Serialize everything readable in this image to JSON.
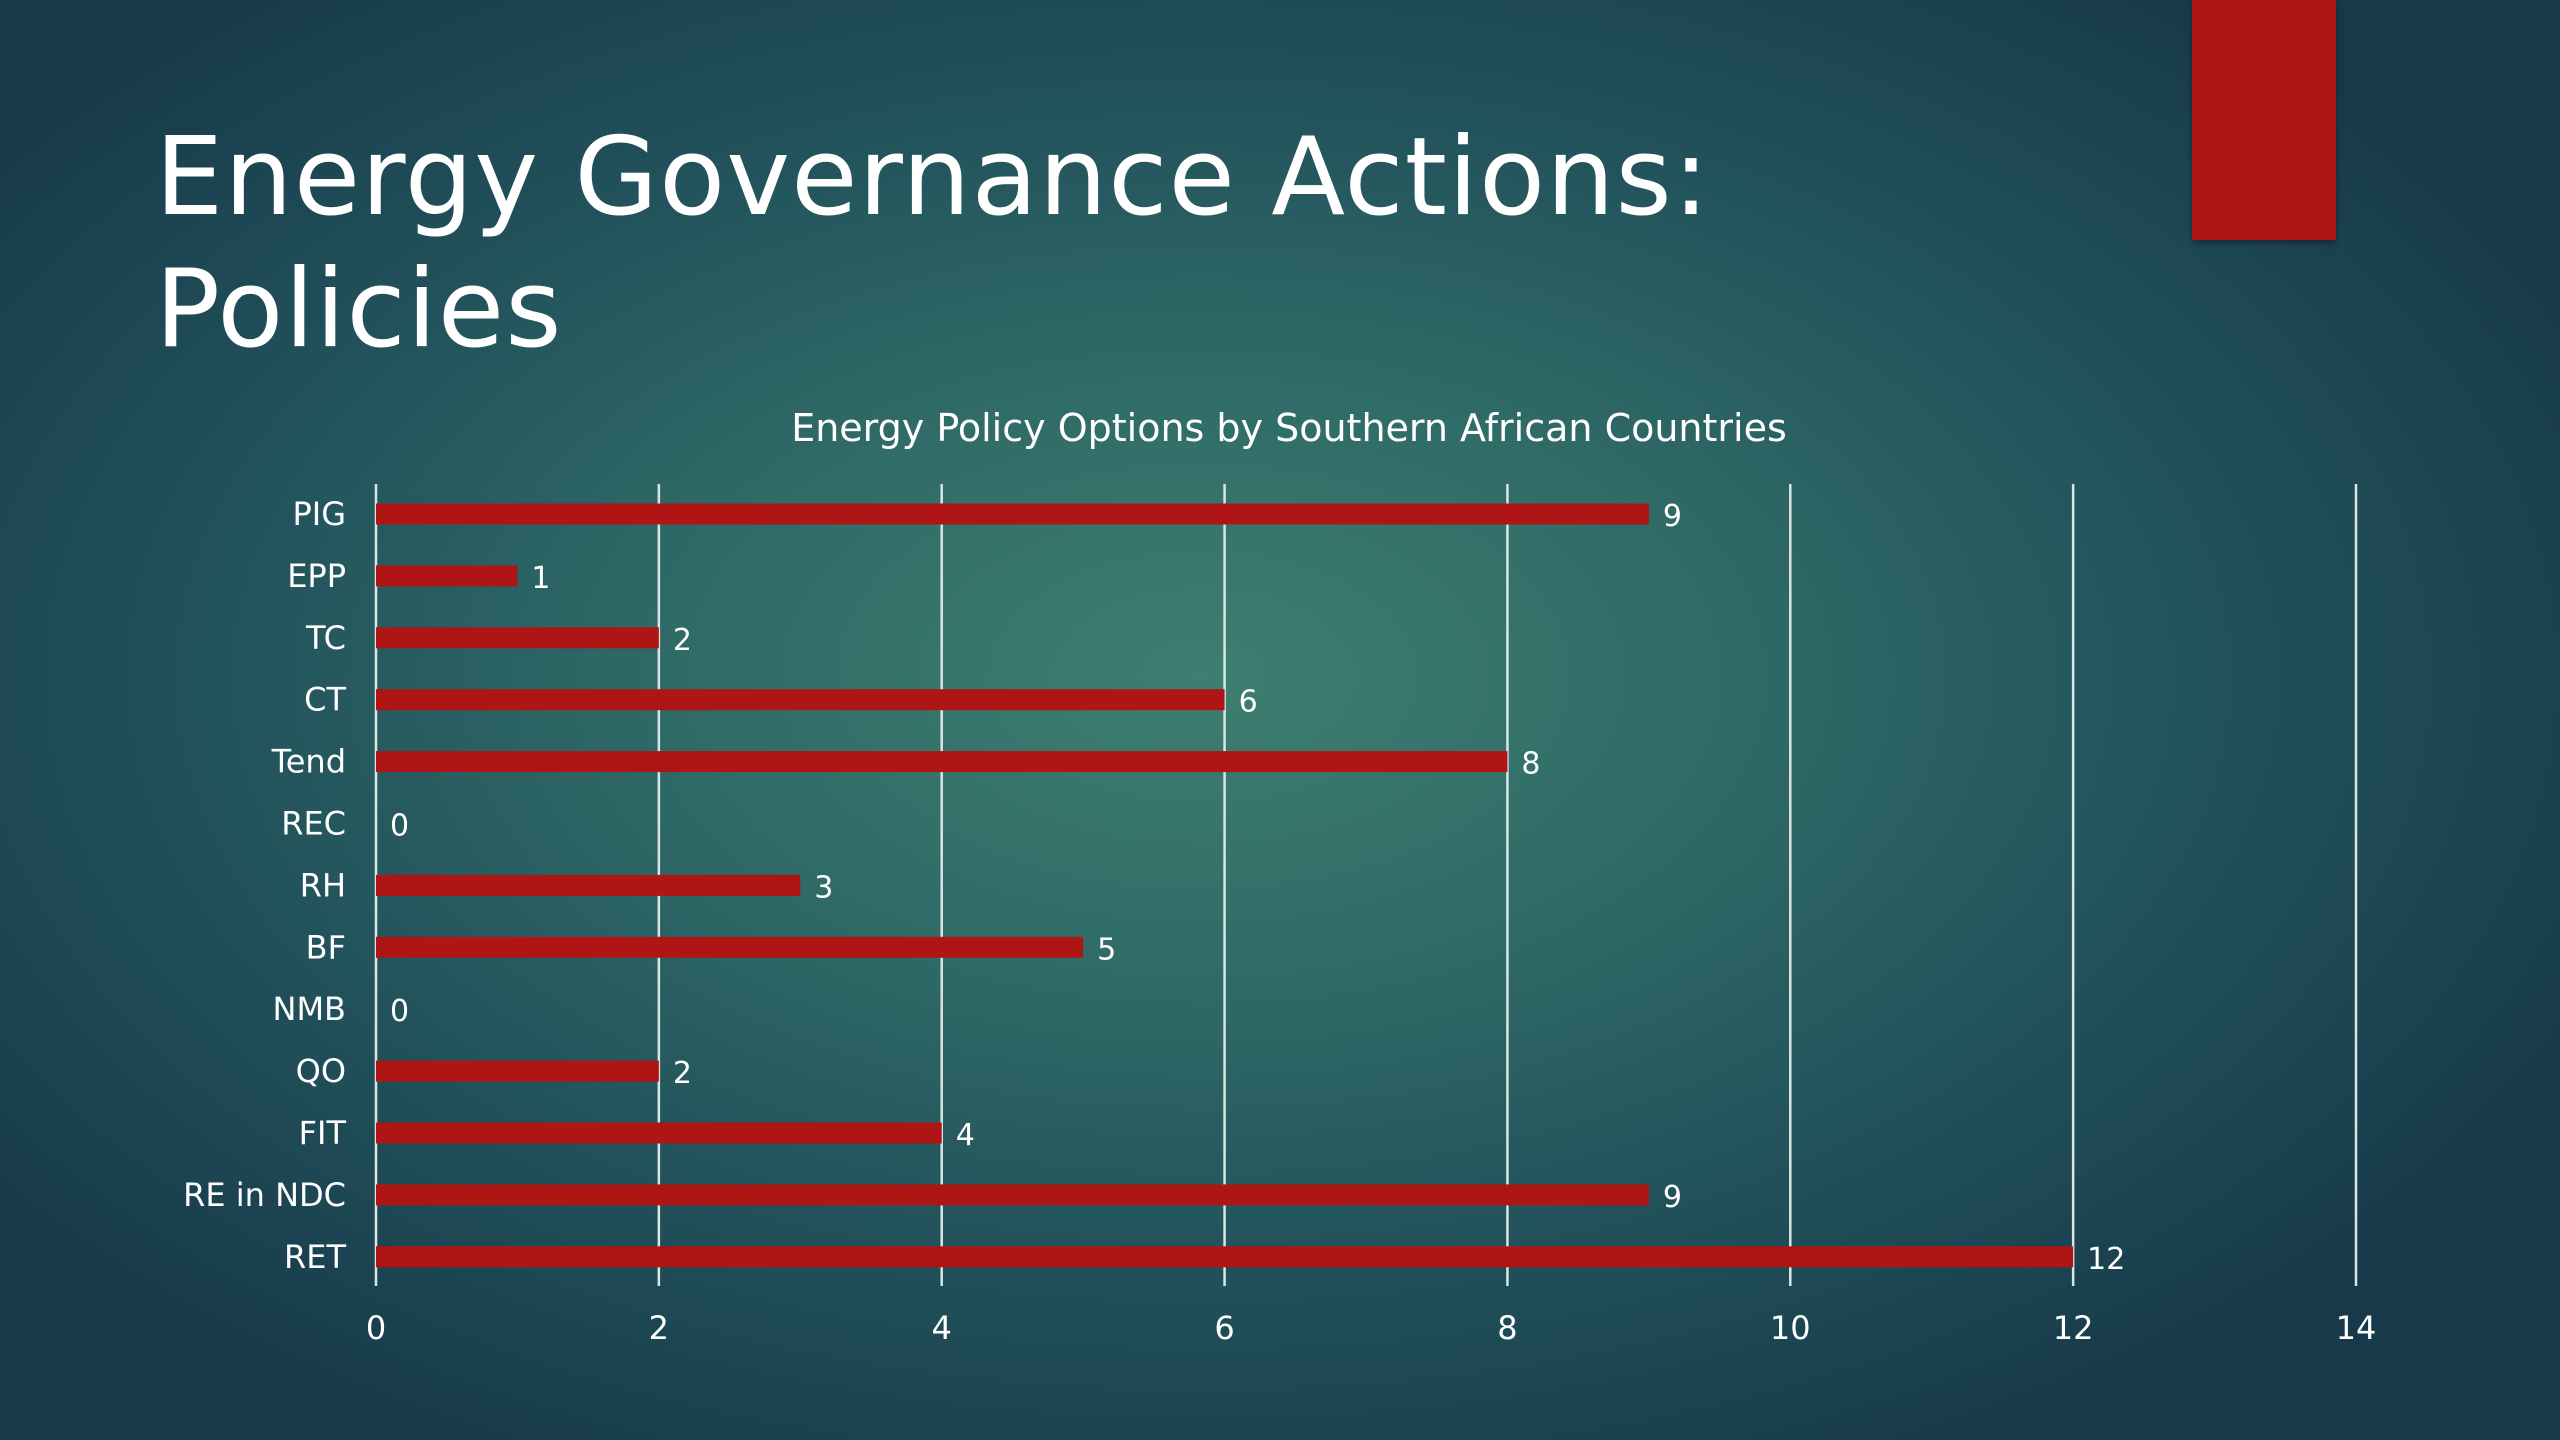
{
  "slide": {
    "title_line1": "Energy Governance Actions:",
    "title_line2": "Policies",
    "accent_color": "#ad1414"
  },
  "chart_data": {
    "type": "bar",
    "orientation": "horizontal",
    "title": "Energy Policy Options by Southern African Countries",
    "categories": [
      "PIG",
      "EPP",
      "TC",
      "CT",
      "Tend",
      "REC",
      "RH",
      "BF",
      "NMB",
      "QO",
      "FIT",
      "RE in NDC",
      "RET"
    ],
    "values": [
      9,
      1,
      2,
      6,
      8,
      0,
      3,
      5,
      0,
      2,
      4,
      9,
      12
    ],
    "xlim": [
      0,
      14
    ],
    "xticks": [
      0,
      2,
      4,
      6,
      8,
      10,
      12,
      14
    ],
    "grid": true,
    "legend": "none",
    "bar_color": "#b01515",
    "data_labels": true
  }
}
